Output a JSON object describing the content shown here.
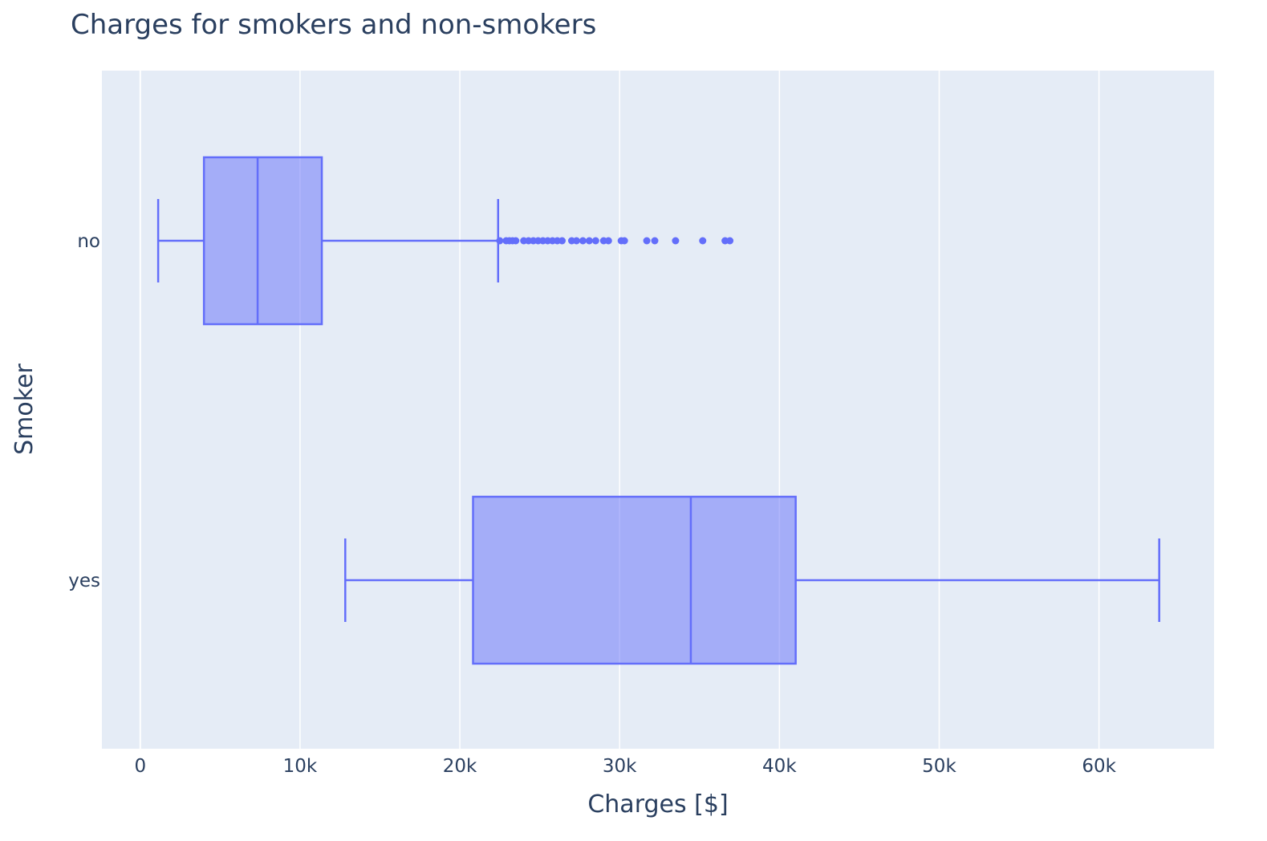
{
  "chart_data": {
    "type": "box",
    "title": "Charges for smokers and non-smokers",
    "xlabel": "Charges [$]",
    "ylabel": "Smoker",
    "xlim": [
      -2400,
      67200
    ],
    "x_ticks": [
      0,
      10000,
      20000,
      30000,
      40000,
      50000,
      60000
    ],
    "x_tick_labels": [
      "0",
      "10k",
      "20k",
      "30k",
      "40k",
      "50k",
      "60k"
    ],
    "categories": [
      "no",
      "yes"
    ],
    "orientation": "horizontal",
    "grid": true,
    "colors": {
      "box_line": "#636efa",
      "box_fill": "#636efa",
      "plot_bg": "#e5ecf6",
      "grid": "#ffffff",
      "text": "#2a3f5f"
    },
    "boxes": [
      {
        "category": "no",
        "lower_fence": 1122,
        "q1": 3986,
        "median": 7345,
        "q3": 11363,
        "upper_fence": 22396,
        "outliers": [
          22500,
          22900,
          23100,
          23300,
          23500,
          24000,
          24300,
          24600,
          24900,
          25200,
          25500,
          25800,
          26100,
          26400,
          27000,
          27300,
          27700,
          28100,
          28500,
          29000,
          29300,
          30100,
          30300,
          31700,
          32200,
          33500,
          35200,
          36600,
          36900
        ]
      },
      {
        "category": "yes",
        "lower_fence": 12830,
        "q1": 20826,
        "median": 34456,
        "q3": 41019,
        "upper_fence": 63770,
        "outliers": []
      }
    ]
  }
}
